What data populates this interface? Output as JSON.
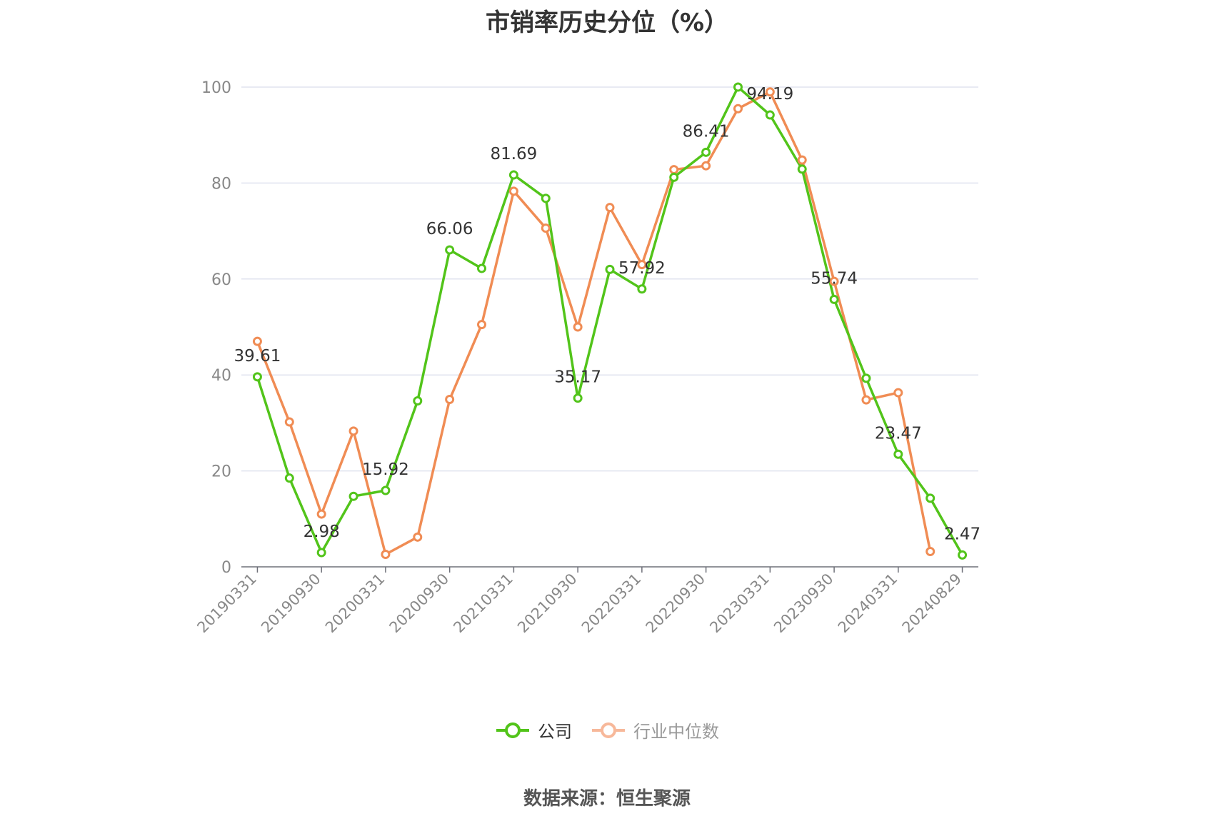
{
  "source_note": "数据来源：恒生聚源",
  "chart_data": {
    "type": "line",
    "title": "市销率历史分位（%）",
    "x": [
      "20190331",
      "20190630",
      "20190930",
      "20191231",
      "20200331",
      "20200630",
      "20200930",
      "20201231",
      "20210331",
      "20210630",
      "20210930",
      "20211231",
      "20220331",
      "20220630",
      "20220930",
      "20221231",
      "20230331",
      "20230630",
      "20230930",
      "20231231",
      "20240331",
      "20240630",
      "20240829"
    ],
    "x_tick_labels": [
      "20190331",
      "20190930",
      "20200331",
      "20200930",
      "20210331",
      "20210930",
      "20220331",
      "20220930",
      "20230331",
      "20230930",
      "20240331",
      "20240829"
    ],
    "ylim": [
      0,
      100
    ],
    "y_ticks": [
      0,
      20,
      40,
      60,
      80,
      100
    ],
    "grid": true,
    "legend_position": "bottom-center",
    "series": [
      {
        "name": "公司",
        "color": "#52c41a",
        "values": [
          39.61,
          18.5,
          2.98,
          14.7,
          15.92,
          34.6,
          66.06,
          62.2,
          81.69,
          76.8,
          35.17,
          62.0,
          57.92,
          81.2,
          86.41,
          100.0,
          94.19,
          82.9,
          55.74,
          39.3,
          23.47,
          14.3,
          2.47
        ],
        "labels": {
          "0": "39.61",
          "2": "2.98",
          "4": "15.92",
          "6": "66.06",
          "8": "81.69",
          "10": "35.17",
          "12": "57.92",
          "14": "86.41",
          "16": "94.19",
          "18": "55.74",
          "20": "23.47",
          "22": "2.47"
        }
      },
      {
        "name": "行业中位数",
        "color": "#f08c54",
        "values": [
          47.0,
          30.2,
          11.0,
          28.3,
          2.6,
          6.2,
          34.9,
          50.5,
          78.3,
          70.6,
          50.0,
          74.9,
          63.0,
          82.8,
          83.6,
          95.5,
          99.0,
          84.8,
          59.5,
          34.8,
          36.3,
          3.2,
          null
        ]
      }
    ]
  }
}
